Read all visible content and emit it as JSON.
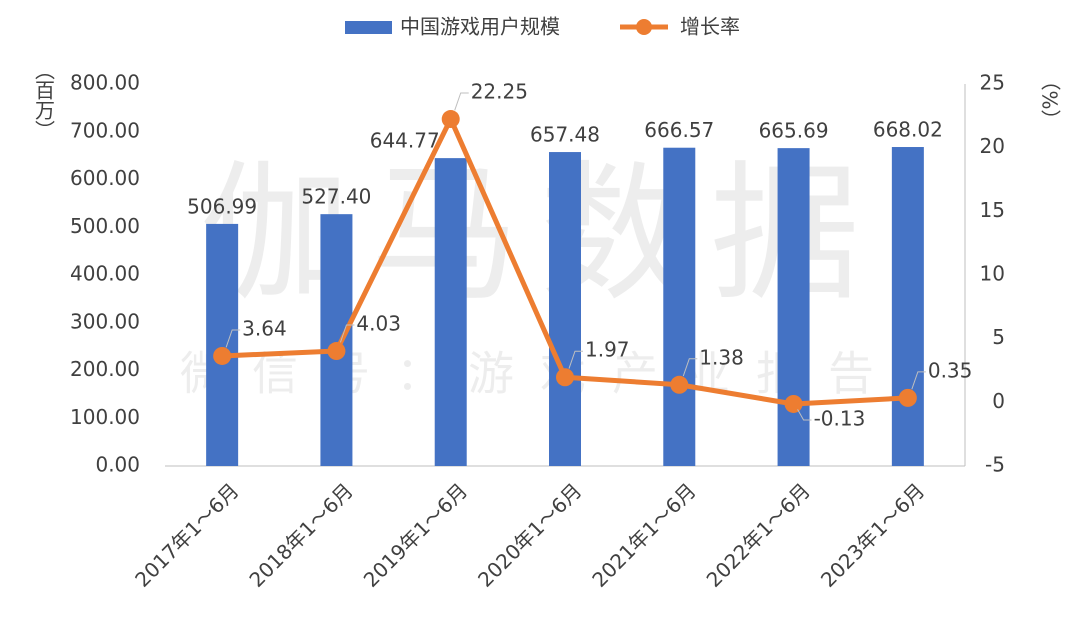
{
  "chart_data": {
    "type": "bar-line",
    "categories": [
      "2017年1～6月",
      "2018年1～6月",
      "2019年1～6月",
      "2020年1～6月",
      "2021年1～6月",
      "2022年1～6月",
      "2023年1～6月"
    ],
    "series": [
      {
        "name": "中国游戏用户规模",
        "type": "bar",
        "color": "#4472c4",
        "values": [
          506.99,
          527.4,
          644.77,
          657.48,
          666.57,
          665.69,
          668.02
        ],
        "value_labels": [
          "506.99",
          "527.40",
          "644.77",
          "657.48",
          "666.57",
          "665.69",
          "668.02"
        ]
      },
      {
        "name": "增长率",
        "type": "line",
        "axis": "y2",
        "color": "#ed7d31",
        "values": [
          3.64,
          4.03,
          22.25,
          1.97,
          1.38,
          -0.13,
          0.35
        ]
      }
    ],
    "ylabel": "（百万）",
    "y2label": "（%）",
    "ylim": [
      0,
      800
    ],
    "yticks": [
      {
        "value": 0,
        "label": "0.00"
      },
      {
        "value": 100,
        "label": "100.00"
      },
      {
        "value": 200,
        "label": "200.00"
      },
      {
        "value": 300,
        "label": "300.00"
      },
      {
        "value": 400,
        "label": "400.00"
      },
      {
        "value": 500,
        "label": "500.00"
      },
      {
        "value": 600,
        "label": "600.00"
      },
      {
        "value": 700,
        "label": "700.00"
      },
      {
        "value": 800,
        "label": "800.00"
      }
    ],
    "y2lim": [
      -5,
      25
    ],
    "y2ticks": [
      -5,
      0,
      5,
      10,
      15,
      20,
      25
    ],
    "legend": "top",
    "watermark": [
      "伽马数据",
      "微信号：游戏产业报告"
    ]
  }
}
